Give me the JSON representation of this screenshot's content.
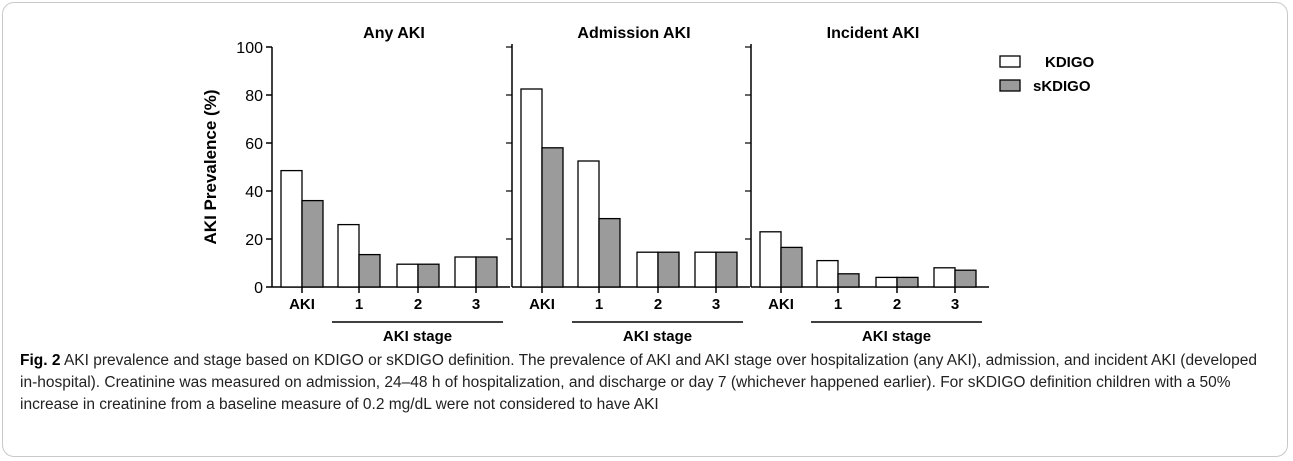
{
  "chart_data": {
    "type": "bar",
    "ylabel": "AKI Prevalence (%)",
    "ylim": [
      0,
      100
    ],
    "yticks": [
      "0",
      "20",
      "40",
      "60",
      "80",
      "100"
    ],
    "categories": [
      "AKI",
      "1",
      "2",
      "3"
    ],
    "stage_group_label": "AKI stage",
    "grid": false,
    "legend_position": "right",
    "panels": [
      {
        "title": "Any AKI",
        "series": [
          {
            "name": "KDIGO",
            "values": [
              48.5,
              26,
              9.5,
              12.5
            ]
          },
          {
            "name": "sKDIGO",
            "values": [
              36,
              13.5,
              9.5,
              12.5
            ]
          }
        ]
      },
      {
        "title": "Admission AKI",
        "series": [
          {
            "name": "KDIGO",
            "values": [
              82.5,
              52.5,
              14.5,
              14.5
            ]
          },
          {
            "name": "sKDIGO",
            "values": [
              58,
              28.5,
              14.5,
              14.5
            ]
          }
        ]
      },
      {
        "title": "Incident AKI",
        "series": [
          {
            "name": "KDIGO",
            "values": [
              23,
              11,
              4,
              8
            ]
          },
          {
            "name": "sKDIGO",
            "values": [
              16.5,
              5.5,
              4,
              7
            ]
          }
        ]
      }
    ],
    "legend": [
      {
        "name": "KDIGO",
        "color": "#ffffff"
      },
      {
        "name": "sKDIGO",
        "color": "#9b9b9b"
      }
    ]
  },
  "caption": {
    "label": "Fig. 2",
    "text": "AKI prevalence and stage based on KDIGO or sKDIGO definition. The prevalence of AKI and AKI stage over hospitalization (any AKI), admission, and incident AKI (developed in-hospital). Creatinine was measured on admission, 24–48 h of hospitalization, and discharge or day 7 (whichever happened earlier). For sKDIGO definition children with a 50% increase in creatinine from a baseline measure of 0.2 mg/dL were not considered to have AKI"
  }
}
